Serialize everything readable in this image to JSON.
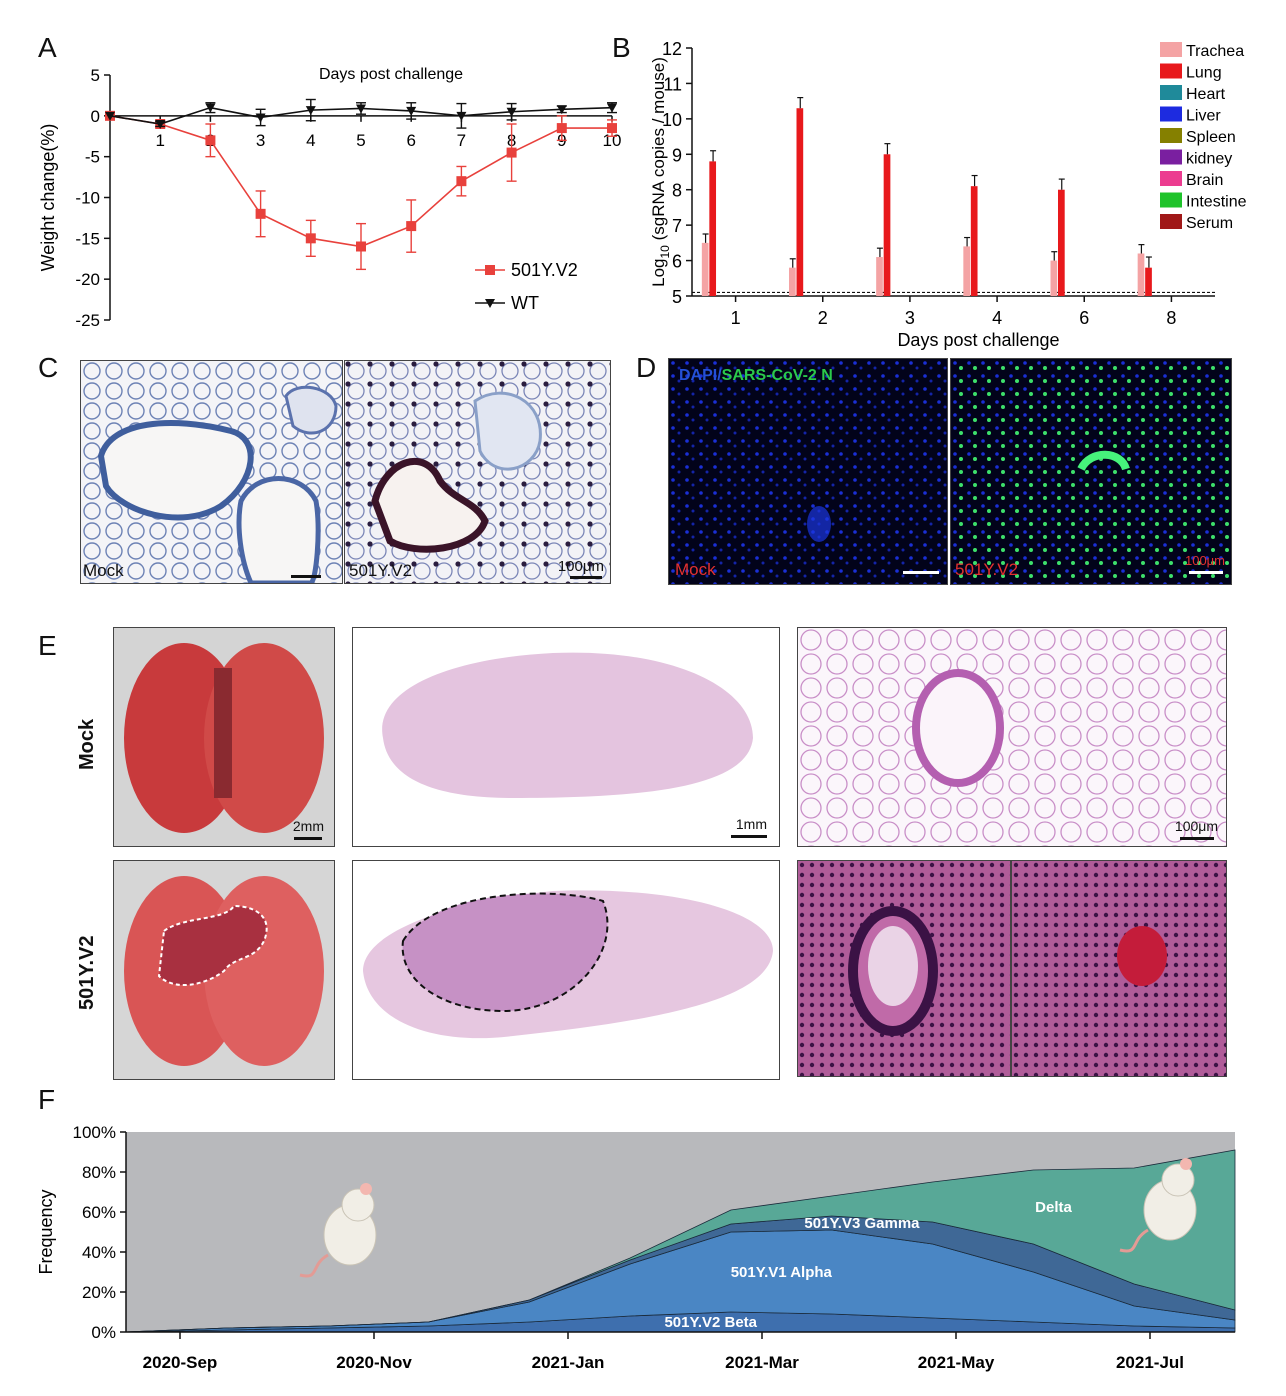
{
  "panel_labels": {
    "a": "A",
    "b": "B",
    "c": "C",
    "d": "D",
    "e": "E",
    "f": "F"
  },
  "panel_c": {
    "left_label": "Mock",
    "right_label": "501Y.V2",
    "scale": "100μm"
  },
  "panel_d": {
    "title_dapi": "DAPI/",
    "title_n": "SARS-CoV-2 N",
    "left_label": "Mock",
    "right_label": "501Y.V2",
    "scale": "100μm"
  },
  "panel_e": {
    "row1": "Mock",
    "row2": "501Y.V2",
    "scale_gross": "2mm",
    "scale_section": "1mm",
    "scale_zoom": "100μm"
  },
  "chart_data": [
    {
      "id": "A",
      "type": "line",
      "title": "Days post challenge",
      "ylabel": "Weight change(%)",
      "ylim": [
        -25,
        5
      ],
      "yticks": [
        5,
        0,
        -5,
        -10,
        -15,
        -20,
        -25
      ],
      "xticks": [
        1,
        2,
        3,
        4,
        5,
        6,
        7,
        8,
        9,
        10
      ],
      "series": [
        {
          "name": "501Y.V2",
          "color": "#e8413c",
          "marker": "square",
          "x": [
            0,
            1,
            2,
            3,
            4,
            5,
            6,
            7,
            8,
            9,
            10
          ],
          "values": [
            0,
            -1,
            -3,
            -12,
            -15,
            -16,
            -13.5,
            -8,
            -4.5,
            -1.5,
            -1.5
          ],
          "err": [
            0,
            0.4,
            2,
            2.8,
            2.2,
            2.8,
            3.2,
            1.8,
            3.5,
            1.5,
            1
          ]
        },
        {
          "name": "WT",
          "color": "#111111",
          "marker": "triangle-down",
          "x": [
            0,
            1,
            2,
            3,
            4,
            5,
            6,
            7,
            8,
            9,
            10
          ],
          "values": [
            0,
            -1,
            1,
            -0.2,
            0.7,
            0.9,
            0.6,
            0,
            0.5,
            0.8,
            1
          ],
          "err": [
            0,
            0.3,
            0.6,
            1,
            1.3,
            0.7,
            1,
            1.5,
            1,
            0.4,
            0.6
          ]
        }
      ]
    },
    {
      "id": "B",
      "type": "bar",
      "xlabel": "Days post challenge",
      "ylabel_pre": "Log",
      "ylabel_sub": "10",
      "ylabel_post": " (sgRNA copies / mouse)",
      "ylim": [
        5,
        12
      ],
      "yticks": [
        5,
        6,
        7,
        8,
        9,
        10,
        11,
        12
      ],
      "categories": [
        "1",
        "2",
        "3",
        "4",
        "6",
        "8"
      ],
      "detection_limit": 5.1,
      "series": [
        {
          "name": "Trachea",
          "color": "#f4a3a4",
          "values": [
            6.5,
            5.8,
            6.1,
            6.4,
            6.0,
            6.2
          ]
        },
        {
          "name": "Lung",
          "color": "#e8191c",
          "values": [
            8.8,
            10.3,
            9.0,
            8.1,
            8.0,
            5.8
          ]
        },
        {
          "name": "Heart",
          "color": "#1f8a9a",
          "values": [
            5,
            5,
            5,
            5,
            5,
            5
          ]
        },
        {
          "name": "Liver",
          "color": "#1d2be0",
          "values": [
            5,
            5,
            5,
            5,
            5,
            5
          ]
        },
        {
          "name": "Spleen",
          "color": "#858000",
          "values": [
            5,
            5,
            5,
            5,
            5,
            5
          ]
        },
        {
          "name": "kidney",
          "color": "#7a1fa0",
          "values": [
            5,
            5,
            5,
            5,
            5,
            5
          ]
        },
        {
          "name": "Brain",
          "color": "#ec3c90",
          "values": [
            5,
            5,
            5,
            5,
            5,
            5
          ]
        },
        {
          "name": "Intestine",
          "color": "#1fc32b",
          "values": [
            5,
            5,
            5,
            5,
            5,
            5
          ]
        },
        {
          "name": "Serum",
          "color": "#a01818",
          "values": [
            5,
            5,
            5,
            5,
            5,
            5
          ]
        }
      ]
    },
    {
      "id": "F",
      "type": "area",
      "ylabel": "Frequency",
      "yticks": [
        "0%",
        "20%",
        "40%",
        "60%",
        "80%",
        "100%"
      ],
      "xticks": [
        "2020-Sep",
        "2020-Nov",
        "2021-Jan",
        "2021-Mar",
        "2021-May",
        "2021-Jul"
      ],
      "t": [
        0,
        1,
        2,
        3,
        4,
        5,
        6,
        7,
        8,
        9,
        10,
        11
      ],
      "series": [
        {
          "name": "501Y.V2 Beta",
          "color": "#3e6fae",
          "values": [
            0,
            1,
            2,
            3,
            5,
            8,
            10,
            9,
            7,
            5,
            3,
            2
          ]
        },
        {
          "name": "501Y.V1 Alpha",
          "color": "#4a86c4",
          "values": [
            0,
            1,
            1,
            2,
            10,
            26,
            40,
            42,
            37,
            25,
            10,
            4
          ]
        },
        {
          "name": "501Y.V3 Gamma",
          "color": "#3f6896",
          "values": [
            0,
            0,
            0,
            0,
            1,
            2,
            4,
            7,
            11,
            14,
            11,
            5
          ]
        },
        {
          "name": "Delta",
          "color": "#58a897",
          "values": [
            0,
            0,
            0,
            0,
            0,
            1,
            7,
            10,
            20,
            37,
            58,
            80
          ]
        }
      ],
      "background_color": "#b8b9bc"
    }
  ]
}
